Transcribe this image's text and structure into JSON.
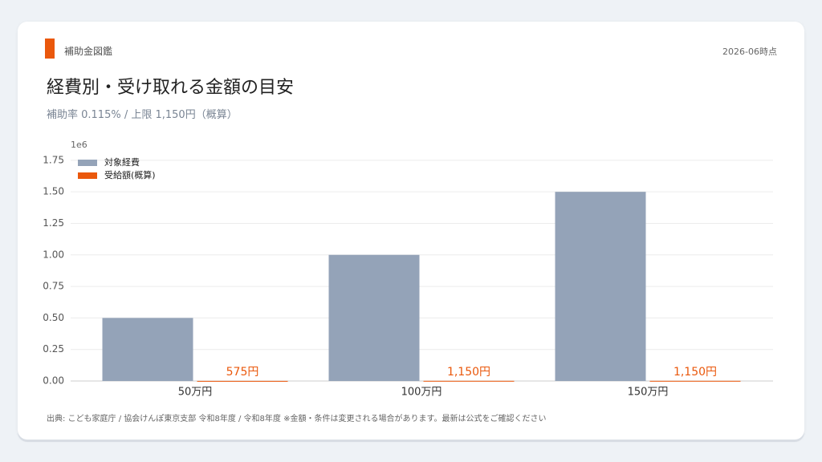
{
  "header": {
    "brand": "補助金図鑑",
    "date": "2026-06時点",
    "title": "経費別・受け取れる金額の目安",
    "subtitle": "補助率 0.115% / 上限 1,150円（概算）"
  },
  "chart_data": {
    "type": "bar",
    "y_offset_label": "1e6",
    "categories": [
      "50万円",
      "100万円",
      "150万円"
    ],
    "series": [
      {
        "name": "対象経費",
        "color": "#94a3b8",
        "values": [
          500000,
          1000000,
          1500000
        ]
      },
      {
        "name": "受給額(概算)",
        "color": "#ea580c",
        "values": [
          575,
          1150,
          1150
        ],
        "value_labels": [
          "575円",
          "1,150円",
          "1,150円"
        ]
      }
    ],
    "ylim": [
      0,
      1800000
    ],
    "yticks": [
      {
        "value": 0,
        "label": "0.00"
      },
      {
        "value": 250000,
        "label": "0.25"
      },
      {
        "value": 500000,
        "label": "0.50"
      },
      {
        "value": 750000,
        "label": "0.75"
      },
      {
        "value": 1000000,
        "label": "1.00"
      },
      {
        "value": 1250000,
        "label": "1.25"
      },
      {
        "value": 1500000,
        "label": "1.50"
      },
      {
        "value": 1750000,
        "label": "1.75"
      }
    ],
    "grid": true,
    "legend": "upper-left"
  },
  "footer": {
    "source": "出典: こども家庭庁 / 協会けんぽ東京支部 令和8年度 / 令和8年度 ※金額・条件は変更される場合があります。最新は公式をご確認ください"
  }
}
